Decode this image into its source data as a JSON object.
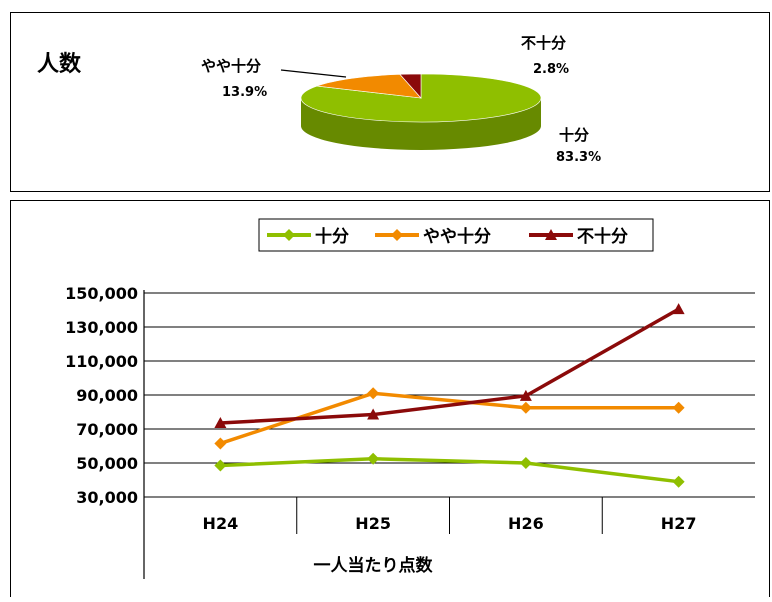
{
  "chart_data": [
    {
      "type": "pie",
      "title": "人数",
      "slices": [
        {
          "label": "十分",
          "value": 83.3,
          "value_label": "83.3%",
          "color": "#8fbf00"
        },
        {
          "label": "やや十分",
          "value": 13.9,
          "value_label": "13.9%",
          "color": "#f28a00"
        },
        {
          "label": "不十分",
          "value": 2.8,
          "value_label": "2.8%",
          "color": "#8b0a0a"
        }
      ]
    },
    {
      "type": "line",
      "categories": [
        "H24",
        "H25",
        "H26",
        "H27"
      ],
      "xlabel": "一人当たり点数",
      "ylabel": "",
      "ylim": [
        30000,
        150000
      ],
      "yticks": [
        "150,000",
        "130,000",
        "110,000",
        "90,000",
        "70,000",
        "50,000",
        "30,000"
      ],
      "ytick_values": [
        150000,
        130000,
        110000,
        90000,
        70000,
        50000,
        30000
      ],
      "grid": true,
      "legend": "top",
      "series": [
        {
          "name": "十分",
          "values": [
            48500,
            52500,
            50000,
            39000
          ],
          "color": "#8fbf00",
          "marker": "diamond"
        },
        {
          "name": "やや十分",
          "values": [
            61500,
            91000,
            82500,
            82500
          ],
          "color": "#f28a00",
          "marker": "diamond"
        },
        {
          "name": "不十分",
          "values": [
            73500,
            78500,
            89500,
            140500
          ],
          "color": "#8b0a0a",
          "marker": "triangle"
        }
      ]
    }
  ]
}
